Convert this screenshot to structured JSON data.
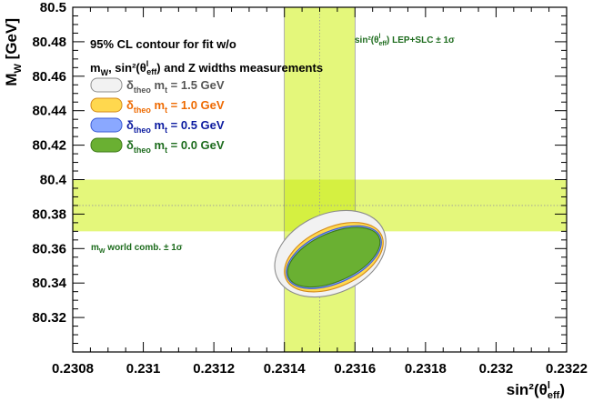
{
  "chart_data": {
    "type": "scatter",
    "xlabel": "sin²(θ",
    "xlabel_sup": "l",
    "xlabel_sub": "eff",
    "xlabel_close": ")",
    "ylabel": "M",
    "ylabel_sub": "W",
    "ylabel_unit": " [GeV]",
    "xlim": [
      0.2308,
      0.2322
    ],
    "ylim": [
      80.3,
      80.5
    ],
    "x_ticks": [
      "0.2308",
      "0.231",
      "0.2312",
      "0.2314",
      "0.2316",
      "0.2318",
      "0.232",
      "0.2322"
    ],
    "x_tick_values": [
      0.2308,
      0.231,
      0.2312,
      0.2314,
      0.2316,
      0.2318,
      0.232,
      0.2322
    ],
    "y_ticks": [
      "80.32",
      "80.34",
      "80.36",
      "80.38",
      "80.4",
      "80.42",
      "80.44",
      "80.46",
      "80.48",
      "80.5"
    ],
    "y_tick_values": [
      80.32,
      80.34,
      80.36,
      80.38,
      80.4,
      80.42,
      80.44,
      80.46,
      80.48,
      80.5
    ],
    "legend_title_line1": "95% CL contour for fit w/o",
    "legend_title_line2": "m",
    "legend_title_line2_sub": "W",
    "legend_title_line2_rest": ", sin²(θ",
    "legend_title_line2_sup": "l",
    "legend_title_line2_sub2": "eff",
    "legend_title_line2_end": ") and Z widths measurements",
    "vertical_band": {
      "center": 0.2315,
      "low": 0.2314,
      "high": 0.2316,
      "color": "#ddf55a",
      "label_main": "sin²(θ",
      "label_sup": "l",
      "label_sub": "eff",
      "label_rest": ") LEP+SLC ± 1σ",
      "label_color": "#1c6b1c"
    },
    "horizontal_band": {
      "center": 80.385,
      "low": 80.37,
      "high": 80.4,
      "color": "#ddf55a",
      "label_main": "m",
      "label_sub": "W",
      "label_rest": " world comb. ± 1σ",
      "label_color": "#1c6b1c"
    },
    "series": [
      {
        "name": "δtheo mt = 1.5 GeV",
        "sym": "δ",
        "sub": "theo",
        "mid": " m",
        "sub2": "t",
        "rest": " = 1.5 GeV",
        "fill": "#f2f2f2",
        "stroke": "#8c8c8c",
        "text_color": "#555555",
        "center": [
          0.23153,
          80.357
        ],
        "half_width": 0.000165,
        "half_height": 0.023,
        "rotation_deg": -24.0
      },
      {
        "name": "δtheo mt = 1.0 GeV",
        "sym": "δ",
        "sub": "theo",
        "mid": " m",
        "sub2": "t",
        "rest": " = 1.0 GeV",
        "fill": "#ffd84e",
        "stroke": "#d48a18",
        "text_color": "#ee6a00",
        "center": [
          0.23154,
          80.355
        ],
        "half_width": 0.000149,
        "half_height": 0.0172,
        "rotation_deg": -24.5
      },
      {
        "name": "δtheo mt = 0.5 GeV",
        "sym": "δ",
        "sub": "theo",
        "mid": " m",
        "sub2": "t",
        "rest": " = 0.5 GeV",
        "fill": "#8aa8ff",
        "stroke": "#3a5ad6",
        "text_color": "#0a1aa0",
        "center": [
          0.23154,
          80.355
        ],
        "half_width": 0.000144,
        "half_height": 0.015,
        "rotation_deg": -24.0
      },
      {
        "name": "δtheo mt = 0.0 GeV",
        "sym": "δ",
        "sub": "theo",
        "mid": " m",
        "sub2": "t",
        "rest": " = 0.0 GeV",
        "fill": "#6ab032",
        "stroke": "#3e7a1a",
        "text_color": "#1c6b1c",
        "center": [
          0.23154,
          80.355
        ],
        "half_width": 0.00014,
        "half_height": 0.014,
        "rotation_deg": -24.0
      }
    ],
    "grid": false,
    "legend_position": "top-left"
  }
}
